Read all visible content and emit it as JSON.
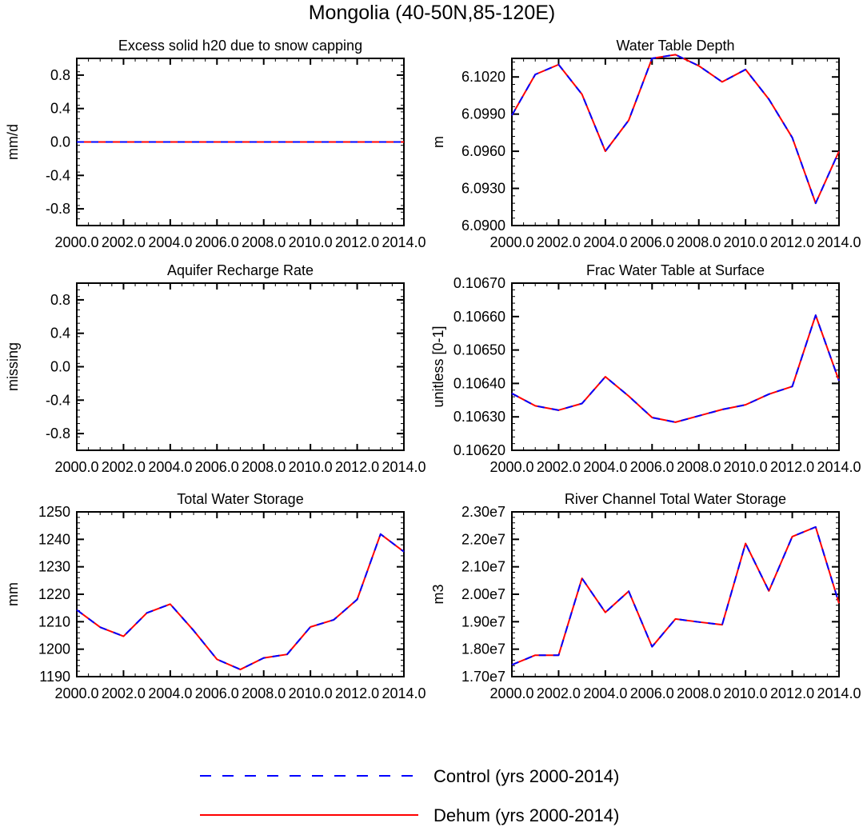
{
  "figure": {
    "title": "Mongolia (40-50N,85-120E)"
  },
  "legend": {
    "entries": [
      {
        "label": "Control (yrs 2000-2014)",
        "color": "#0000ff",
        "style": "dashed"
      },
      {
        "label": "Dehum (yrs 2000-2014)",
        "color": "#ff0000",
        "style": "solid"
      }
    ]
  },
  "chart_data": [
    {
      "type": "line",
      "title": "Excess solid h20 due to snow capping",
      "xlabel": "",
      "ylabel": "mm/d",
      "xlim": [
        2000,
        2014
      ],
      "ylim": [
        -1.0,
        1.0
      ],
      "xticks": [
        "2000.0",
        "2002.0",
        "2004.0",
        "2006.0",
        "2008.0",
        "2010.0",
        "2012.0",
        "2014.0"
      ],
      "yticks": [
        "-0.8",
        "-0.4",
        "0.0",
        "0.4",
        "0.8"
      ],
      "ytick_values": [
        -0.8,
        -0.4,
        0.0,
        0.4,
        0.8
      ],
      "x": [
        2000,
        2001,
        2002,
        2003,
        2004,
        2005,
        2006,
        2007,
        2008,
        2009,
        2010,
        2011,
        2012,
        2013,
        2014
      ],
      "series": [
        {
          "name": "Control (yrs 2000-2014)",
          "values": [
            0,
            0,
            0,
            0,
            0,
            0,
            0,
            0,
            0,
            0,
            0,
            0,
            0,
            0,
            0
          ]
        },
        {
          "name": "Dehum (yrs 2000-2014)",
          "values": [
            0,
            0,
            0,
            0,
            0,
            0,
            0,
            0,
            0,
            0,
            0,
            0,
            0,
            0,
            0
          ]
        }
      ]
    },
    {
      "type": "line",
      "title": "Water Table Depth",
      "xlabel": "",
      "ylabel": "m",
      "xlim": [
        2000,
        2014
      ],
      "ylim": [
        6.09,
        6.1035
      ],
      "xticks": [
        "2000.0",
        "2002.0",
        "2004.0",
        "2006.0",
        "2008.0",
        "2010.0",
        "2012.0",
        "2014.0"
      ],
      "yticks": [
        "6.0900",
        "6.0930",
        "6.0960",
        "6.0990",
        "6.1020"
      ],
      "ytick_values": [
        6.09,
        6.093,
        6.096,
        6.099,
        6.102
      ],
      "x": [
        2000,
        2001,
        2002,
        2003,
        2004,
        2005,
        2006,
        2007,
        2008,
        2009,
        2010,
        2011,
        2012,
        2013,
        2014
      ],
      "series": [
        {
          "name": "Control (yrs 2000-2014)",
          "values": [
            6.0989,
            6.1022,
            6.103,
            6.1006,
            6.096,
            6.0985,
            6.1035,
            6.1038,
            6.1029,
            6.1016,
            6.1026,
            6.1002,
            6.0971,
            6.0918,
            6.096
          ]
        },
        {
          "name": "Dehum (yrs 2000-2014)",
          "values": [
            6.0989,
            6.1022,
            6.103,
            6.1006,
            6.096,
            6.0985,
            6.1035,
            6.1038,
            6.1029,
            6.1016,
            6.1026,
            6.1002,
            6.0971,
            6.0918,
            6.096
          ]
        }
      ]
    },
    {
      "type": "line",
      "title": "Aquifer Recharge Rate",
      "xlabel": "",
      "ylabel": "missing",
      "xlim": [
        2000,
        2014
      ],
      "ylim": [
        -1.0,
        1.0
      ],
      "xticks": [
        "2000.0",
        "2002.0",
        "2004.0",
        "2006.0",
        "2008.0",
        "2010.0",
        "2012.0",
        "2014.0"
      ],
      "yticks": [
        "-0.8",
        "-0.4",
        "0.0",
        "0.4",
        "0.8"
      ],
      "ytick_values": [
        -0.8,
        -0.4,
        0.0,
        0.4,
        0.8
      ],
      "x": [],
      "series": []
    },
    {
      "type": "line",
      "title": "Frac Water Table at Surface",
      "xlabel": "",
      "ylabel": "unitless [0-1]",
      "xlim": [
        2000,
        2014
      ],
      "ylim": [
        0.1062,
        0.1067
      ],
      "xticks": [
        "2000.0",
        "2002.0",
        "2004.0",
        "2006.0",
        "2008.0",
        "2010.0",
        "2012.0",
        "2014.0"
      ],
      "yticks": [
        "0.10620",
        "0.10630",
        "0.10640",
        "0.10650",
        "0.10660",
        "0.10670"
      ],
      "ytick_values": [
        0.1062,
        0.1063,
        0.1064,
        0.1065,
        0.1066,
        0.1067
      ],
      "x": [
        2000,
        2001,
        2002,
        2003,
        2004,
        2005,
        2006,
        2007,
        2008,
        2009,
        2010,
        2011,
        2012,
        2013,
        2014
      ],
      "series": [
        {
          "name": "Control (yrs 2000-2014)",
          "values": [
            0.10637,
            0.106333,
            0.10632,
            0.10634,
            0.10642,
            0.106362,
            0.106298,
            0.106284,
            0.106303,
            0.106322,
            0.106336,
            0.106368,
            0.106391,
            0.106604,
            0.106408
          ]
        },
        {
          "name": "Dehum (yrs 2000-2014)",
          "values": [
            0.10637,
            0.106333,
            0.10632,
            0.10634,
            0.10642,
            0.106362,
            0.106298,
            0.106284,
            0.106303,
            0.106322,
            0.106336,
            0.106368,
            0.106391,
            0.106604,
            0.106408
          ]
        }
      ]
    },
    {
      "type": "line",
      "title": "Total Water Storage",
      "xlabel": "",
      "ylabel": "mm",
      "xlim": [
        2000,
        2014
      ],
      "ylim": [
        1190,
        1250
      ],
      "xticks": [
        "2000.0",
        "2002.0",
        "2004.0",
        "2006.0",
        "2008.0",
        "2010.0",
        "2012.0",
        "2014.0"
      ],
      "yticks": [
        "1190",
        "1200",
        "1210",
        "1220",
        "1230",
        "1240",
        "1250"
      ],
      "ytick_values": [
        1190,
        1200,
        1210,
        1220,
        1230,
        1240,
        1250
      ],
      "x": [
        2000,
        2001,
        2002,
        2003,
        2004,
        2005,
        2006,
        2007,
        2008,
        2009,
        2010,
        2011,
        2012,
        2013,
        2014
      ],
      "series": [
        {
          "name": "Control (yrs 2000-2014)",
          "values": [
            1214.3,
            1208.0,
            1204.7,
            1213.2,
            1216.4,
            1206.8,
            1196.3,
            1192.6,
            1196.8,
            1198.1,
            1208.1,
            1210.7,
            1218.1,
            1241.9,
            1235.5
          ]
        },
        {
          "name": "Dehum (yrs 2000-2014)",
          "values": [
            1214.3,
            1208.0,
            1204.7,
            1213.2,
            1216.4,
            1206.8,
            1196.3,
            1192.6,
            1196.8,
            1198.1,
            1208.1,
            1210.7,
            1218.1,
            1241.9,
            1235.5
          ]
        }
      ]
    },
    {
      "type": "line",
      "title": "River Channel Total Water Storage",
      "xlabel": "",
      "ylabel": "m3",
      "xlim": [
        2000,
        2014
      ],
      "ylim": [
        17000000,
        23000000
      ],
      "xticks": [
        "2000.0",
        "2002.0",
        "2004.0",
        "2006.0",
        "2008.0",
        "2010.0",
        "2012.0",
        "2014.0"
      ],
      "yticks": [
        "1.70e7",
        "1.80e7",
        "1.90e7",
        "2.00e7",
        "2.10e7",
        "2.20e7",
        "2.30e7"
      ],
      "ytick_values": [
        17000000,
        18000000,
        19000000,
        20000000,
        21000000,
        22000000,
        23000000
      ],
      "x": [
        2000,
        2001,
        2002,
        2003,
        2004,
        2005,
        2006,
        2007,
        2008,
        2009,
        2010,
        2011,
        2012,
        2013,
        2014
      ],
      "series": [
        {
          "name": "Control (yrs 2000-2014)",
          "values": [
            17430000,
            17780000,
            17780000,
            20580000,
            19340000,
            20110000,
            18090000,
            19100000,
            18990000,
            18890000,
            21850000,
            20120000,
            22100000,
            22450000,
            19670000
          ]
        },
        {
          "name": "Dehum (yrs 2000-2014)",
          "values": [
            17430000,
            17780000,
            17780000,
            20580000,
            19340000,
            20110000,
            18090000,
            19100000,
            18990000,
            18890000,
            21850000,
            20120000,
            22100000,
            22450000,
            19670000
          ]
        }
      ]
    }
  ]
}
